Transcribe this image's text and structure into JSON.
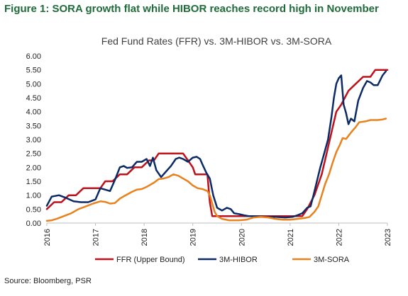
{
  "figure_title": "Figure 1: SORA growth flat while HIBOR reaches record high in November",
  "source": "Source: Bloomberg, PSR",
  "colors": {
    "ffr": "#c0101a",
    "hibor": "#0c2a66",
    "sora": "#e8821e",
    "title": "#1f6b3a",
    "axis": "#bfbfbf"
  },
  "chart_data": {
    "type": "line",
    "title": "Fed Fund Rates (FFR) vs. 3M-HIBOR vs. 3M-SORA",
    "xlabel": "",
    "ylabel": "",
    "xlim": [
      2016,
      2023
    ],
    "ylim": [
      0,
      6
    ],
    "x_ticks": [
      "2016",
      "2017",
      "2018",
      "2019",
      "2020",
      "2021",
      "2022",
      "2023"
    ],
    "y_ticks": [
      "0.00",
      "0.50",
      "1.00",
      "1.50",
      "2.00",
      "2.50",
      "3.00",
      "3.50",
      "4.00",
      "4.50",
      "5.00",
      "5.50",
      "6.00"
    ],
    "grid": false,
    "legend": "bottom",
    "series": [
      {
        "name": "FFR (Upper Bound)",
        "color": "#c0101a",
        "points": [
          [
            2016.0,
            0.5
          ],
          [
            2016.15,
            0.75
          ],
          [
            2016.3,
            0.75
          ],
          [
            2016.45,
            1.0
          ],
          [
            2016.6,
            1.0
          ],
          [
            2016.75,
            1.25
          ],
          [
            2016.95,
            1.25
          ],
          [
            2017.1,
            1.25
          ],
          [
            2017.2,
            1.5
          ],
          [
            2017.35,
            1.5
          ],
          [
            2017.5,
            1.75
          ],
          [
            2017.65,
            1.75
          ],
          [
            2017.8,
            2.0
          ],
          [
            2017.95,
            2.0
          ],
          [
            2018.1,
            2.25
          ],
          [
            2018.2,
            2.25
          ],
          [
            2018.3,
            2.5
          ],
          [
            2018.5,
            2.5
          ],
          [
            2018.7,
            2.5
          ],
          [
            2018.8,
            2.5
          ],
          [
            2018.9,
            2.25
          ],
          [
            2019.0,
            2.0
          ],
          [
            2019.05,
            1.75
          ],
          [
            2019.3,
            1.75
          ],
          [
            2019.35,
            0.75
          ],
          [
            2019.4,
            0.25
          ],
          [
            2019.55,
            0.25
          ],
          [
            2019.8,
            0.25
          ],
          [
            2020.2,
            0.25
          ],
          [
            2020.6,
            0.25
          ],
          [
            2021.0,
            0.25
          ],
          [
            2021.25,
            0.25
          ],
          [
            2021.35,
            0.5
          ],
          [
            2021.5,
            1.0
          ],
          [
            2021.65,
            1.75
          ],
          [
            2021.75,
            2.5
          ],
          [
            2021.85,
            3.25
          ],
          [
            2021.95,
            4.0
          ],
          [
            2022.05,
            4.25
          ],
          [
            2022.2,
            4.75
          ],
          [
            2022.35,
            5.0
          ],
          [
            2022.5,
            5.25
          ],
          [
            2022.65,
            5.25
          ],
          [
            2022.75,
            5.5
          ],
          [
            2022.85,
            5.5
          ],
          [
            2023.0,
            5.5
          ]
        ]
      },
      {
        "name": "3M-HIBOR",
        "color": "#0c2a66",
        "points": [
          [
            2016.0,
            0.62
          ],
          [
            2016.1,
            0.95
          ],
          [
            2016.25,
            1.0
          ],
          [
            2016.4,
            0.9
          ],
          [
            2016.55,
            0.78
          ],
          [
            2016.7,
            0.75
          ],
          [
            2016.85,
            0.75
          ],
          [
            2017.0,
            0.85
          ],
          [
            2017.1,
            1.25
          ],
          [
            2017.2,
            1.2
          ],
          [
            2017.3,
            1.15
          ],
          [
            2017.4,
            1.55
          ],
          [
            2017.5,
            2.0
          ],
          [
            2017.58,
            2.05
          ],
          [
            2017.65,
            1.98
          ],
          [
            2017.75,
            2.0
          ],
          [
            2017.85,
            2.2
          ],
          [
            2017.95,
            2.2
          ],
          [
            2018.05,
            2.3
          ],
          [
            2018.12,
            2.05
          ],
          [
            2018.18,
            2.35
          ],
          [
            2018.25,
            1.9
          ],
          [
            2018.35,
            1.65
          ],
          [
            2018.45,
            1.85
          ],
          [
            2018.55,
            2.05
          ],
          [
            2018.65,
            2.3
          ],
          [
            2018.72,
            2.35
          ],
          [
            2018.8,
            2.3
          ],
          [
            2018.9,
            2.2
          ],
          [
            2019.0,
            2.35
          ],
          [
            2019.08,
            2.38
          ],
          [
            2019.15,
            2.3
          ],
          [
            2019.2,
            2.1
          ],
          [
            2019.28,
            1.8
          ],
          [
            2019.35,
            1.6
          ],
          [
            2019.42,
            1.0
          ],
          [
            2019.5,
            0.55
          ],
          [
            2019.6,
            0.45
          ],
          [
            2019.7,
            0.55
          ],
          [
            2019.78,
            0.5
          ],
          [
            2019.85,
            0.35
          ],
          [
            2019.95,
            0.32
          ],
          [
            2020.05,
            0.28
          ],
          [
            2020.15,
            0.25
          ],
          [
            2020.3,
            0.25
          ],
          [
            2020.5,
            0.22
          ],
          [
            2020.7,
            0.22
          ],
          [
            2020.9,
            0.2
          ],
          [
            2021.05,
            0.22
          ],
          [
            2021.15,
            0.28
          ],
          [
            2021.25,
            0.35
          ],
          [
            2021.35,
            0.55
          ],
          [
            2021.42,
            0.6
          ],
          [
            2021.48,
            1.0
          ],
          [
            2021.55,
            1.5
          ],
          [
            2021.62,
            2.0
          ],
          [
            2021.7,
            2.5
          ],
          [
            2021.78,
            3.0
          ],
          [
            2021.85,
            3.8
          ],
          [
            2021.9,
            4.5
          ],
          [
            2021.95,
            5.0
          ],
          [
            2022.0,
            5.2
          ],
          [
            2022.05,
            5.3
          ],
          [
            2022.1,
            4.25
          ],
          [
            2022.15,
            3.95
          ],
          [
            2022.2,
            3.55
          ],
          [
            2022.25,
            3.75
          ],
          [
            2022.32,
            3.65
          ],
          [
            2022.4,
            4.4
          ],
          [
            2022.5,
            4.85
          ],
          [
            2022.58,
            5.1
          ],
          [
            2022.65,
            5.05
          ],
          [
            2022.72,
            4.95
          ],
          [
            2022.8,
            4.95
          ],
          [
            2022.9,
            5.3
          ],
          [
            2022.97,
            5.45
          ]
        ]
      },
      {
        "name": "3M-SORA",
        "color": "#e8821e",
        "points": [
          [
            2016.0,
            0.08
          ],
          [
            2016.1,
            0.1
          ],
          [
            2016.2,
            0.15
          ],
          [
            2016.35,
            0.25
          ],
          [
            2016.5,
            0.35
          ],
          [
            2016.65,
            0.5
          ],
          [
            2016.8,
            0.6
          ],
          [
            2016.95,
            0.7
          ],
          [
            2017.1,
            0.78
          ],
          [
            2017.2,
            0.76
          ],
          [
            2017.3,
            0.7
          ],
          [
            2017.4,
            0.72
          ],
          [
            2017.5,
            0.88
          ],
          [
            2017.6,
            0.98
          ],
          [
            2017.75,
            1.12
          ],
          [
            2017.85,
            1.2
          ],
          [
            2017.95,
            1.22
          ],
          [
            2018.05,
            1.3
          ],
          [
            2018.2,
            1.45
          ],
          [
            2018.3,
            1.58
          ],
          [
            2018.4,
            1.6
          ],
          [
            2018.5,
            1.65
          ],
          [
            2018.6,
            1.75
          ],
          [
            2018.7,
            1.7
          ],
          [
            2018.8,
            1.6
          ],
          [
            2018.9,
            1.5
          ],
          [
            2019.0,
            1.35
          ],
          [
            2019.1,
            1.25
          ],
          [
            2019.2,
            1.22
          ],
          [
            2019.3,
            1.15
          ],
          [
            2019.35,
            1.0
          ],
          [
            2019.4,
            0.7
          ],
          [
            2019.45,
            0.4
          ],
          [
            2019.5,
            0.25
          ],
          [
            2019.6,
            0.15
          ],
          [
            2019.75,
            0.1
          ],
          [
            2019.95,
            0.1
          ],
          [
            2020.1,
            0.12
          ],
          [
            2020.25,
            0.2
          ],
          [
            2020.4,
            0.22
          ],
          [
            2020.55,
            0.2
          ],
          [
            2020.7,
            0.15
          ],
          [
            2020.85,
            0.12
          ],
          [
            2021.0,
            0.12
          ],
          [
            2021.15,
            0.15
          ],
          [
            2021.3,
            0.18
          ],
          [
            2021.4,
            0.22
          ],
          [
            2021.5,
            0.4
          ],
          [
            2021.58,
            0.6
          ],
          [
            2021.65,
            1.0
          ],
          [
            2021.72,
            1.4
          ],
          [
            2021.8,
            1.75
          ],
          [
            2021.88,
            2.2
          ],
          [
            2021.95,
            2.55
          ],
          [
            2022.02,
            2.8
          ],
          [
            2022.08,
            3.05
          ],
          [
            2022.15,
            3.02
          ],
          [
            2022.25,
            3.25
          ],
          [
            2022.35,
            3.45
          ],
          [
            2022.42,
            3.62
          ],
          [
            2022.55,
            3.65
          ],
          [
            2022.65,
            3.7
          ],
          [
            2022.8,
            3.7
          ],
          [
            2022.9,
            3.72
          ],
          [
            2022.97,
            3.75
          ]
        ]
      }
    ]
  }
}
